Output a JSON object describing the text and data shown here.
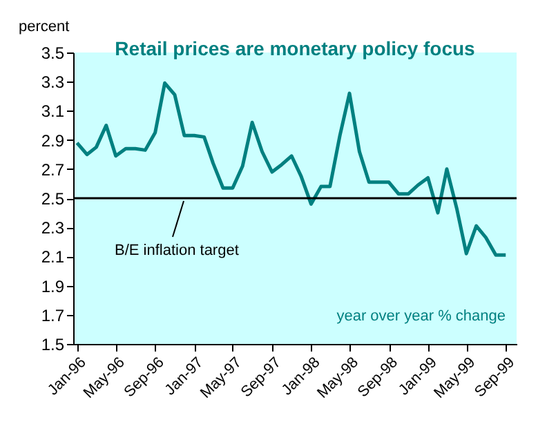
{
  "chart_data": {
    "type": "line",
    "title": "Retail prices are monetary policy focus",
    "ylabel": "percent",
    "x": [
      "1996-01",
      "1996-02",
      "1996-03",
      "1996-04",
      "1996-05",
      "1996-06",
      "1996-07",
      "1996-08",
      "1996-09",
      "1996-10",
      "1996-11",
      "1996-12",
      "1997-01",
      "1997-02",
      "1997-03",
      "1997-04",
      "1997-05",
      "1997-06",
      "1997-07",
      "1997-08",
      "1997-09",
      "1997-10",
      "1997-11",
      "1997-12",
      "1998-01",
      "1998-02",
      "1998-03",
      "1998-04",
      "1998-05",
      "1998-06",
      "1998-07",
      "1998-08",
      "1998-09",
      "1998-10",
      "1998-11",
      "1998-12",
      "1999-01",
      "1999-02",
      "1999-03",
      "1999-04",
      "1999-05",
      "1999-06",
      "1999-07",
      "1999-08",
      "1999-09"
    ],
    "series": [
      {
        "color": "#008080",
        "values": [
          2.88,
          2.8,
          2.85,
          3.0,
          2.79,
          2.84,
          2.84,
          2.83,
          2.95,
          3.29,
          3.21,
          2.93,
          2.93,
          2.92,
          2.74,
          2.57,
          2.57,
          2.72,
          3.02,
          2.82,
          2.68,
          2.73,
          2.79,
          2.65,
          2.46,
          2.58,
          2.58,
          2.93,
          3.22,
          2.82,
          2.61,
          2.61,
          2.61,
          2.53,
          2.53,
          2.59,
          2.64,
          2.4,
          2.7,
          2.43,
          2.12,
          2.31,
          2.23,
          2.11,
          2.11
        ]
      }
    ],
    "xlim": [
      "1995-12-20",
      "1999-10-05"
    ],
    "xticks": [
      {
        "value": "1996-01",
        "label": "Jan-96"
      },
      {
        "value": "1996-05",
        "label": "May-96"
      },
      {
        "value": "1996-09",
        "label": "Sep-96"
      },
      {
        "value": "1997-01",
        "label": "Jan-97"
      },
      {
        "value": "1997-05",
        "label": "May-97"
      },
      {
        "value": "1997-09",
        "label": "Sep-97"
      },
      {
        "value": "1998-01",
        "label": "Jan-98"
      },
      {
        "value": "1998-05",
        "label": "May-98"
      },
      {
        "value": "1998-09",
        "label": "Sep-98"
      },
      {
        "value": "1999-01",
        "label": "Jan-99"
      },
      {
        "value": "1999-05",
        "label": "May-99"
      },
      {
        "value": "1999-09",
        "label": "Sep-99"
      }
    ],
    "ylim": [
      1.5,
      3.5
    ],
    "yticks": [
      1.5,
      1.7,
      1.9,
      2.1,
      2.3,
      2.5,
      2.7,
      2.9,
      3.1,
      3.3,
      3.5
    ],
    "ref_lines": [
      {
        "axis": "y",
        "value": 2.5,
        "label": "B/E inflation target",
        "color": "#000000"
      }
    ],
    "annotations": [
      "year over year % change"
    ],
    "grid": false,
    "marker": "none",
    "line_style": "solid"
  }
}
